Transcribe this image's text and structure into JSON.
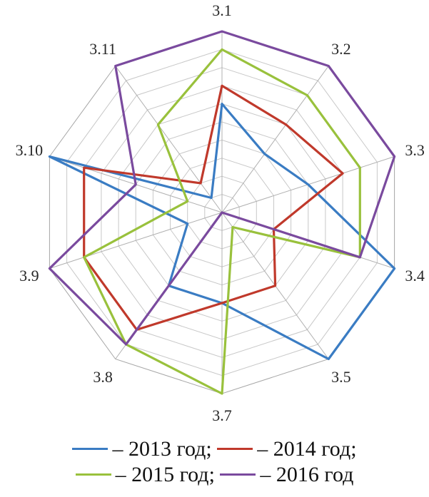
{
  "chart_data": {
    "type": "radar",
    "categories": [
      "3.1",
      "3.2",
      "3.3",
      "3.4",
      "3.5",
      "3.7",
      "3.8",
      "3.9",
      "3.10",
      "3.11"
    ],
    "rmax": 10,
    "rings": 10,
    "series": [
      {
        "name": "2013 год",
        "color": "#3A7CC3",
        "values": [
          6,
          4,
          5,
          10,
          10,
          5,
          5,
          2,
          10,
          1
        ]
      },
      {
        "name": "2014 год",
        "color": "#C0392B",
        "values": [
          7,
          6,
          7,
          3,
          5,
          5,
          8,
          8,
          8,
          2
        ]
      },
      {
        "name": "2015 год",
        "color": "#99C13C",
        "values": [
          9,
          8,
          8,
          8,
          1,
          10,
          9,
          8,
          2,
          6
        ]
      },
      {
        "name": "2016 год",
        "color": "#7A4A9E",
        "values": [
          10,
          10,
          10,
          8,
          0,
          0,
          9,
          10,
          5,
          10
        ]
      }
    ],
    "legend": [
      {
        "label": "– 2013 год;",
        "color": "#3A7CC3"
      },
      {
        "label": "– 2014 год;",
        "color": "#C0392B"
      },
      {
        "label": "– 2015 год;",
        "color": "#99C13C"
      },
      {
        "label": "– 2016 год",
        "color": "#7A4A9E"
      }
    ]
  }
}
